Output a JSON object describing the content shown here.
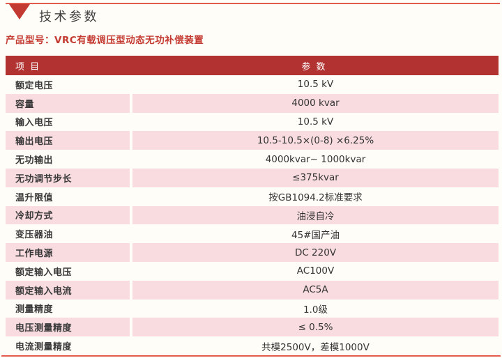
{
  "theme": {
    "page_bg": "#fffdf8",
    "rule_color": "#e25a4c",
    "triangle_color": "#c23a31",
    "product_text": "#c43b32",
    "header_bg": "#b23131",
    "header_text": "#ffffff",
    "row_pink": "#f8dce0"
  },
  "header": {
    "section_title": "技术参数",
    "marker_icon": "triangle-down-icon",
    "product_line": "产品型号：VRC有载调压型动态无功补偿装置"
  },
  "table": {
    "columns": {
      "item": "项 目",
      "param": "参 数"
    },
    "rows": [
      {
        "item": "额定电压",
        "value": "10.5 kV"
      },
      {
        "item": "容量",
        "value": "4000 kvar"
      },
      {
        "item": "输入电压",
        "value": "10.5 kV"
      },
      {
        "item": "输出电压",
        "value": "10.5-10.5×(0-8) ×6.25%"
      },
      {
        "item": "无功输出",
        "value": "4000kvar~ 1000kvar"
      },
      {
        "item": "无功调节步长",
        "value": "≤375kvar"
      },
      {
        "item": "温升限值",
        "value": "按GB1094.2标准要求"
      },
      {
        "item": "冷却方式",
        "value": "油浸自冷"
      },
      {
        "item": "变压器油",
        "value": "45#国产油"
      },
      {
        "item": "工作电源",
        "value": "DC 220V"
      },
      {
        "item": "额定输入电压",
        "value": "AC100V"
      },
      {
        "item": "额定输入电流",
        "value": "AC5A"
      },
      {
        "item": "测量精度",
        "value": "1.0级"
      },
      {
        "item": "电压测量精度",
        "value": "≤ 0.5%"
      },
      {
        "item": "电流测量精度",
        "value": "共模2500V，差模1000V"
      }
    ]
  }
}
